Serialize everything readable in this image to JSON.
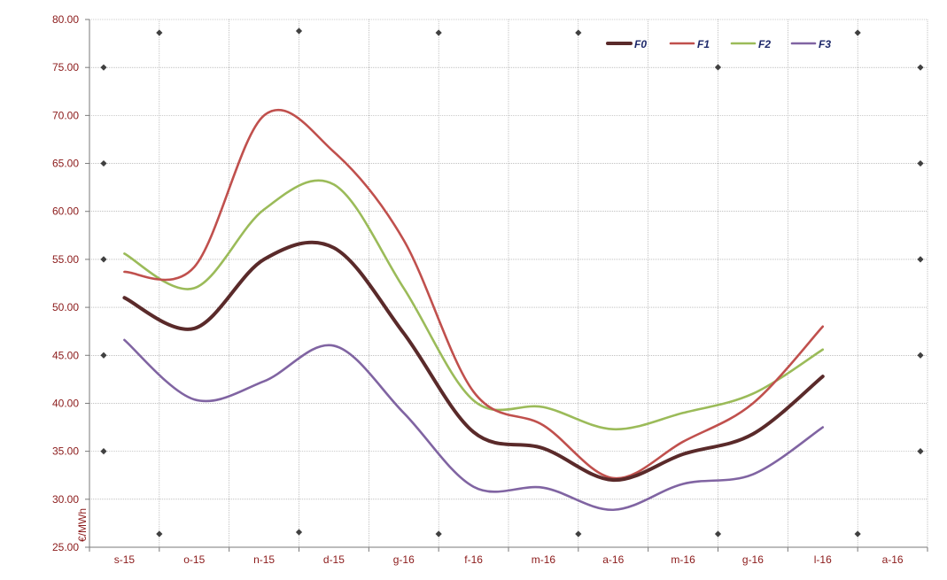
{
  "chart_data": {
    "type": "line",
    "title": "",
    "xlabel": "",
    "ylabel": "€/MWh",
    "categories": [
      "s-15",
      "o-15",
      "n-15",
      "d-15",
      "g-16",
      "f-16",
      "m-16",
      "a-16",
      "m-16",
      "g-16",
      "l-16",
      "a-16"
    ],
    "ylim": [
      25,
      80
    ],
    "yticks": [
      "25.00",
      "30.00",
      "35.00",
      "40.00",
      "45.00",
      "50.00",
      "55.00",
      "60.00",
      "65.00",
      "70.00",
      "75.00",
      "80.00"
    ],
    "grid": true,
    "legend_position": "top-right",
    "series": [
      {
        "name": "F0",
        "color": "#5a2a2a",
        "values": [
          51.0,
          47.8,
          55.0,
          56.2,
          47.3,
          37.0,
          35.3,
          32.0,
          34.7,
          36.8,
          42.8,
          null
        ]
      },
      {
        "name": "F1",
        "color": "#c0504d",
        "values": [
          53.7,
          54.2,
          70.0,
          66.2,
          57.0,
          41.2,
          37.7,
          32.2,
          36.0,
          40.0,
          48.0,
          null
        ]
      },
      {
        "name": "F2",
        "color": "#9bbb59",
        "values": [
          55.6,
          52.0,
          60.2,
          62.8,
          52.0,
          40.3,
          39.6,
          37.3,
          39.0,
          41.0,
          45.6,
          null
        ]
      },
      {
        "name": "F3",
        "color": "#8064a2",
        "values": [
          46.6,
          40.4,
          42.3,
          46.0,
          39.0,
          31.3,
          31.2,
          28.9,
          31.6,
          32.6,
          37.5,
          null
        ]
      }
    ]
  }
}
